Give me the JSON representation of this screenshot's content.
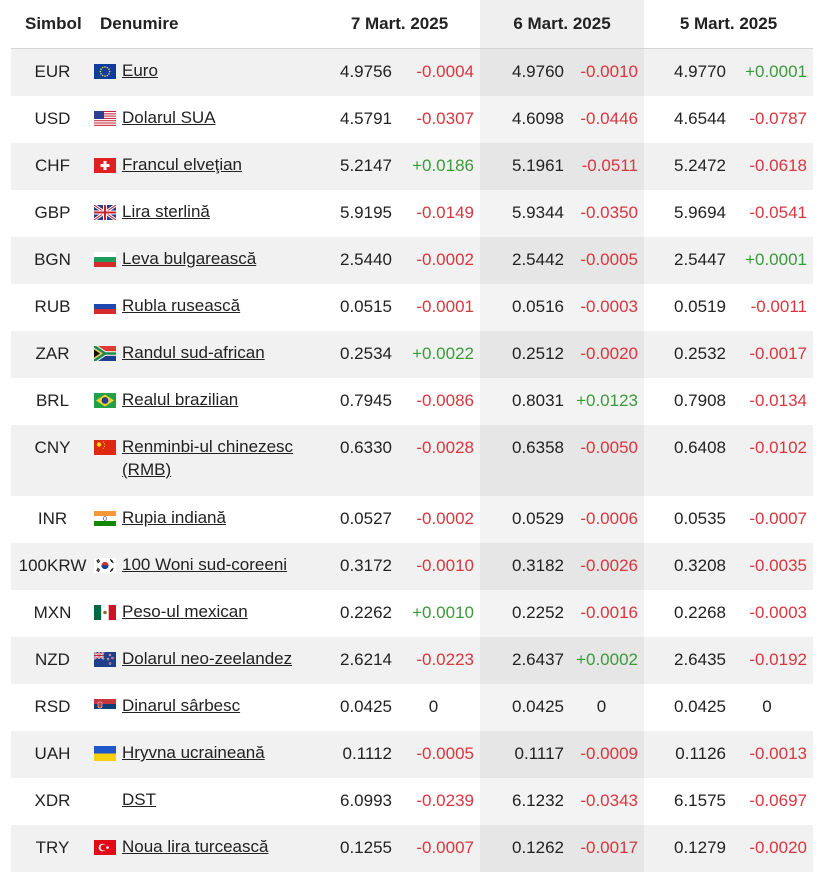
{
  "header": {
    "symbol": "Simbol",
    "name": "Denumire",
    "date1": "7 Mart. 2025",
    "date2": "6 Mart. 2025",
    "date3": "5 Mart. 2025"
  },
  "rows": [
    {
      "symbol": "EUR",
      "name": "Euro",
      "flag": "eu-flag",
      "v1": "4.9756",
      "c1": "-0.0004",
      "v2": "4.9760",
      "c2": "-0.0010",
      "v3": "4.9770",
      "c3": "+0.0001"
    },
    {
      "symbol": "USD",
      "name": "Dolarul SUA",
      "flag": "us-flag",
      "v1": "4.5791",
      "c1": "-0.0307",
      "v2": "4.6098",
      "c2": "-0.0446",
      "v3": "4.6544",
      "c3": "-0.0787"
    },
    {
      "symbol": "CHF",
      "name": "Francul elveţian",
      "flag": "ch-flag",
      "v1": "5.2147",
      "c1": "+0.0186",
      "v2": "5.1961",
      "c2": "-0.0511",
      "v3": "5.2472",
      "c3": "-0.0618"
    },
    {
      "symbol": "GBP",
      "name": "Lira sterlină",
      "flag": "gb-flag",
      "v1": "5.9195",
      "c1": "-0.0149",
      "v2": "5.9344",
      "c2": "-0.0350",
      "v3": "5.9694",
      "c3": "-0.0541"
    },
    {
      "symbol": "BGN",
      "name": "Leva bulgarească",
      "flag": "bg-flag",
      "v1": "2.5440",
      "c1": "-0.0002",
      "v2": "2.5442",
      "c2": "-0.0005",
      "v3": "2.5447",
      "c3": "+0.0001"
    },
    {
      "symbol": "RUB",
      "name": "Rubla rusească",
      "flag": "ru-flag",
      "v1": "0.0515",
      "c1": "-0.0001",
      "v2": "0.0516",
      "c2": "-0.0003",
      "v3": "0.0519",
      "c3": "-0.0011"
    },
    {
      "symbol": "ZAR",
      "name": "Randul sud-african",
      "flag": "za-flag",
      "v1": "0.2534",
      "c1": "+0.0022",
      "v2": "0.2512",
      "c2": "-0.0020",
      "v3": "0.2532",
      "c3": "-0.0017"
    },
    {
      "symbol": "BRL",
      "name": "Realul brazilian",
      "flag": "br-flag",
      "v1": "0.7945",
      "c1": "-0.0086",
      "v2": "0.8031",
      "c2": "+0.0123",
      "v3": "0.7908",
      "c3": "-0.0134"
    },
    {
      "symbol": "CNY",
      "name": "Renminbi-ul chinezesc (RMB)",
      "flag": "cn-flag",
      "v1": "0.6330",
      "c1": "-0.0028",
      "v2": "0.6358",
      "c2": "-0.0050",
      "v3": "0.6408",
      "c3": "-0.0102"
    },
    {
      "symbol": "INR",
      "name": "Rupia indiană",
      "flag": "in-flag",
      "v1": "0.0527",
      "c1": "-0.0002",
      "v2": "0.0529",
      "c2": "-0.0006",
      "v3": "0.0535",
      "c3": "-0.0007"
    },
    {
      "symbol": "100KRW",
      "name": "100 Woni sud-coreeni",
      "flag": "kr-flag",
      "v1": "0.3172",
      "c1": "-0.0010",
      "v2": "0.3182",
      "c2": "-0.0026",
      "v3": "0.3208",
      "c3": "-0.0035"
    },
    {
      "symbol": "MXN",
      "name": "Peso-ul mexican",
      "flag": "mx-flag",
      "v1": "0.2262",
      "c1": "+0.0010",
      "v2": "0.2252",
      "c2": "-0.0016",
      "v3": "0.2268",
      "c3": "-0.0003"
    },
    {
      "symbol": "NZD",
      "name": "Dolarul neo-zeelandez",
      "flag": "nz-flag",
      "v1": "2.6214",
      "c1": "-0.0223",
      "v2": "2.6437",
      "c2": "+0.0002",
      "v3": "2.6435",
      "c3": "-0.0192"
    },
    {
      "symbol": "RSD",
      "name": "Dinarul sârbesc",
      "flag": "rs-flag",
      "v1": "0.0425",
      "c1": "0",
      "v2": "0.0425",
      "c2": "0",
      "v3": "0.0425",
      "c3": "0"
    },
    {
      "symbol": "UAH",
      "name": "Hryvna ucraineană",
      "flag": "ua-flag",
      "v1": "0.1112",
      "c1": "-0.0005",
      "v2": "0.1117",
      "c2": "-0.0009",
      "v3": "0.1126",
      "c3": "-0.0013"
    },
    {
      "symbol": "XDR",
      "name": "DST",
      "flag": "",
      "v1": "6.0993",
      "c1": "-0.0239",
      "v2": "6.1232",
      "c2": "-0.0343",
      "v3": "6.1575",
      "c3": "-0.0697"
    },
    {
      "symbol": "TRY",
      "name": "Noua lira turcească",
      "flag": "tr-flag",
      "v1": "0.1255",
      "c1": "-0.0007",
      "v2": "0.1262",
      "c2": "-0.0017",
      "v3": "0.1279",
      "c3": "-0.0020"
    }
  ],
  "colors": {
    "positive": "#3a9b3a",
    "negative": "#d9363e"
  }
}
